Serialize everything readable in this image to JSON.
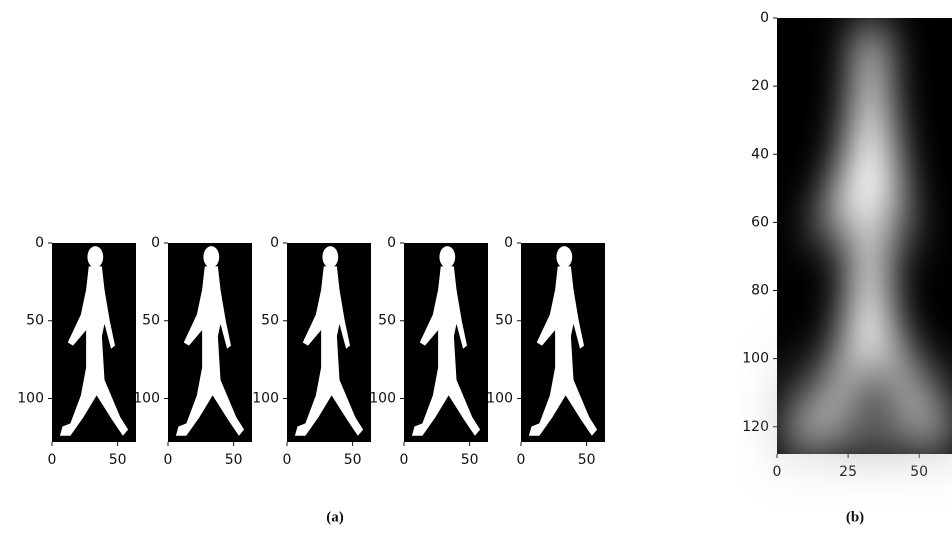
{
  "figure": {
    "panel_a": {
      "frames": [
        {
          "xlim": [
            0,
            64
          ],
          "ylim": [
            0,
            128
          ],
          "xticks": [
            0,
            50
          ],
          "yticks": [
            0,
            50,
            100
          ]
        },
        {
          "xlim": [
            0,
            64
          ],
          "ylim": [
            0,
            128
          ],
          "xticks": [
            0,
            50
          ],
          "yticks": [
            0,
            50,
            100
          ]
        },
        {
          "xlim": [
            0,
            64
          ],
          "ylim": [
            0,
            128
          ],
          "xticks": [
            0,
            50
          ],
          "yticks": [
            0,
            50,
            100
          ]
        },
        {
          "xlim": [
            0,
            64
          ],
          "ylim": [
            0,
            128
          ],
          "xticks": [
            0,
            50
          ],
          "yticks": [
            0,
            50,
            100
          ]
        },
        {
          "xlim": [
            0,
            64
          ],
          "ylim": [
            0,
            128
          ],
          "xticks": [
            0,
            50
          ],
          "yticks": [
            0,
            50,
            100
          ]
        }
      ],
      "caption": "(a)"
    },
    "panel_b": {
      "xlim": [
        0,
        64
      ],
      "ylim": [
        0,
        128
      ],
      "xticks": [
        0,
        25,
        50
      ],
      "yticks": [
        0,
        20,
        40,
        60,
        80,
        100,
        120
      ],
      "caption": "(b)"
    }
  }
}
